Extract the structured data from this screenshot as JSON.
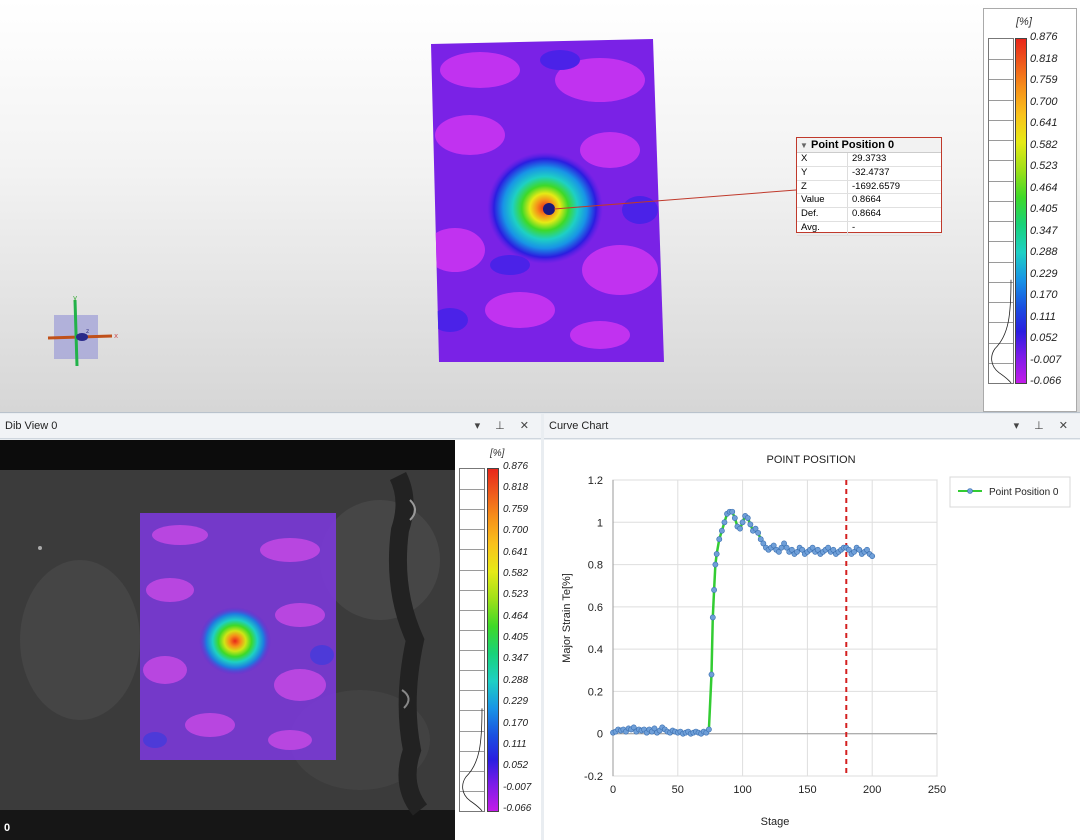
{
  "colors": {
    "accent_line": "#33cc33",
    "marker": "#6f9fd8",
    "stage_marker": "#d42020"
  },
  "view3d": {
    "point_box": {
      "title": "Point Position 0",
      "rows": [
        {
          "k": "X",
          "v": "29.3733"
        },
        {
          "k": "Y",
          "v": "-32.4737"
        },
        {
          "k": "Z",
          "v": "-1692.6579"
        },
        {
          "k": "Value",
          "v": "0.8664"
        },
        {
          "k": "Def.",
          "v": "0.8664"
        },
        {
          "k": "Avg.",
          "v": "-"
        }
      ]
    },
    "axes": {
      "x": "x",
      "y": "y",
      "z": "z"
    }
  },
  "scale": {
    "unit": "[%]",
    "ticks": [
      "0.876",
      "0.818",
      "0.759",
      "0.700",
      "0.641",
      "0.582",
      "0.523",
      "0.464",
      "0.405",
      "0.347",
      "0.288",
      "0.229",
      "0.170",
      "0.111",
      "0.052",
      "-0.007",
      "-0.066"
    ]
  },
  "dib": {
    "title": "Dib View 0",
    "frame": "0",
    "controls": "▾ ⊥ ✕"
  },
  "chart_panel": {
    "title": "Curve Chart",
    "controls": "▾ ⊥ ✕"
  },
  "chart_data": {
    "type": "line",
    "title": "POINT POSITION",
    "xlabel": "Stage",
    "ylabel": "Major Strain Te[%]",
    "xlim": [
      0,
      250
    ],
    "ylim": [
      -0.2,
      1.2
    ],
    "xticks": [
      "0",
      "50",
      "100",
      "150",
      "200",
      "250"
    ],
    "yticks": [
      "1.2",
      "1",
      "0.8",
      "0.6",
      "0.4",
      "0.2",
      "0",
      "-0.2"
    ],
    "grid": true,
    "legend": "top-right",
    "series": [
      {
        "name": "Point Position 0",
        "x": [
          0,
          2,
          4,
          6,
          8,
          10,
          12,
          14,
          16,
          18,
          20,
          22,
          24,
          26,
          28,
          30,
          32,
          34,
          36,
          38,
          40,
          42,
          44,
          46,
          48,
          50,
          52,
          54,
          56,
          58,
          60,
          62,
          64,
          66,
          68,
          70,
          72,
          74,
          76,
          77,
          78,
          79,
          80,
          82,
          84,
          86,
          88,
          90,
          92,
          94,
          96,
          98,
          100,
          102,
          104,
          106,
          108,
          110,
          112,
          114,
          116,
          118,
          120,
          122,
          124,
          126,
          128,
          130,
          132,
          134,
          136,
          138,
          140,
          142,
          144,
          146,
          148,
          150,
          152,
          154,
          156,
          158,
          160,
          162,
          164,
          166,
          168,
          170,
          172,
          174,
          176,
          178,
          180,
          182,
          184,
          186,
          188,
          190,
          192,
          194,
          196,
          198,
          200
        ],
        "y": [
          0.005,
          0.01,
          0.02,
          0.015,
          0.02,
          0.01,
          0.025,
          0.02,
          0.03,
          0.01,
          0.02,
          0.015,
          0.02,
          0.005,
          0.02,
          0.01,
          0.025,
          0.005,
          0.015,
          0.03,
          0.02,
          0.01,
          0.005,
          0.015,
          0.01,
          0.005,
          0.01,
          0.0,
          0.005,
          0.01,
          0.0,
          0.005,
          0.01,
          0.005,
          0.0,
          0.01,
          0.005,
          0.02,
          0.28,
          0.55,
          0.68,
          0.8,
          0.85,
          0.92,
          0.96,
          1.0,
          1.04,
          1.05,
          1.05,
          1.02,
          0.98,
          0.97,
          1.0,
          1.03,
          1.02,
          0.99,
          0.96,
          0.97,
          0.95,
          0.92,
          0.9,
          0.88,
          0.87,
          0.88,
          0.89,
          0.87,
          0.86,
          0.88,
          0.9,
          0.88,
          0.86,
          0.87,
          0.85,
          0.86,
          0.88,
          0.87,
          0.85,
          0.86,
          0.87,
          0.88,
          0.86,
          0.87,
          0.85,
          0.86,
          0.87,
          0.88,
          0.86,
          0.87,
          0.85,
          0.86,
          0.87,
          0.88,
          0.88,
          0.87,
          0.85,
          0.86,
          0.88,
          0.87,
          0.85,
          0.86,
          0.87,
          0.85,
          0.84
        ]
      }
    ],
    "stage_marker_x": 180
  }
}
